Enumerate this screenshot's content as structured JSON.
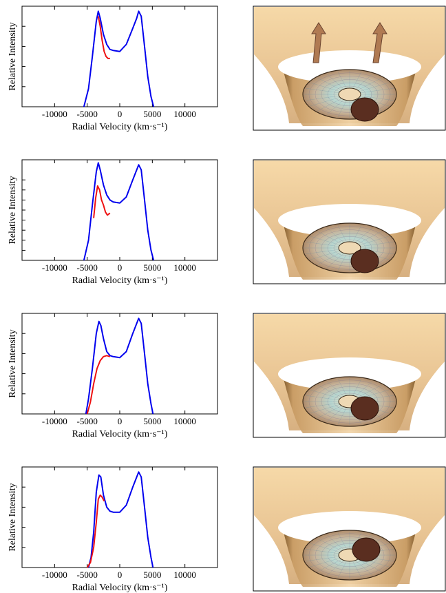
{
  "figure": {
    "colors": {
      "blue": "#0000ee",
      "red": "#ee1111",
      "funnel_light": "#f3d2a0",
      "funnel_dark": "#7a5422",
      "blob": "#5a2e20",
      "arrow": "#b07a52"
    }
  },
  "chart_data": [
    {
      "type": "line",
      "panel": 1,
      "xlabel": "Radial Velocity (km·s⁻¹)",
      "ylabel": "Relative Intensity",
      "xlim": [
        -15000,
        15000
      ],
      "ylim": [
        0,
        1
      ],
      "xticks": [
        -10000,
        -5000,
        0,
        5000,
        10000
      ],
      "xtick_labels": [
        "-10000",
        "-5000",
        "0",
        "5000",
        "10000"
      ],
      "yticks": [
        0.2,
        0.4,
        0.6,
        0.8
      ],
      "grid": false,
      "series": [
        {
          "color": "blue",
          "x": [
            -5500,
            -4800,
            -4200,
            -3600,
            -3300,
            -3000,
            -2500,
            -2000,
            -1500,
            -1000,
            0,
            1000,
            2000,
            2600,
            2900,
            3300,
            3800,
            4300,
            4800,
            5200
          ],
          "y": [
            0.0,
            0.18,
            0.5,
            0.85,
            0.95,
            0.88,
            0.72,
            0.62,
            0.57,
            0.56,
            0.55,
            0.62,
            0.78,
            0.88,
            0.95,
            0.9,
            0.6,
            0.3,
            0.1,
            0.0
          ]
        },
        {
          "color": "red",
          "x": [
            -3300,
            -3000,
            -2700,
            -2400,
            -2100,
            -1800,
            -1500
          ],
          "y": [
            0.9,
            0.8,
            0.66,
            0.55,
            0.5,
            0.48,
            0.48
          ]
        }
      ]
    },
    {
      "type": "line",
      "panel": 2,
      "xlabel": "Radial Velocity (km·s⁻¹)",
      "ylabel": "Relative Intensity",
      "xlim": [
        -15000,
        15000
      ],
      "ylim": [
        0,
        1
      ],
      "xticks": [
        -10000,
        -5000,
        0,
        5000,
        10000
      ],
      "xtick_labels": [
        "-10000",
        "-5000",
        "0",
        "5000",
        "10000"
      ],
      "yticks": [
        0.1,
        0.2,
        0.3,
        0.4,
        0.5,
        0.6,
        0.7,
        0.8
      ],
      "grid": false,
      "series": [
        {
          "color": "blue",
          "x": [
            -5500,
            -4800,
            -4200,
            -3600,
            -3300,
            -3000,
            -2500,
            -2000,
            -1500,
            -1000,
            0,
            1000,
            2000,
            2600,
            2900,
            3300,
            3800,
            4300,
            4800,
            5200
          ],
          "y": [
            0.0,
            0.2,
            0.55,
            0.88,
            0.97,
            0.9,
            0.75,
            0.65,
            0.6,
            0.58,
            0.57,
            0.63,
            0.8,
            0.9,
            0.95,
            0.9,
            0.6,
            0.3,
            0.1,
            0.0
          ]
        },
        {
          "color": "red",
          "x": [
            -4000,
            -3700,
            -3400,
            -3100,
            -2800,
            -2500,
            -2200,
            -1900,
            -1500
          ],
          "y": [
            0.42,
            0.62,
            0.74,
            0.7,
            0.6,
            0.55,
            0.48,
            0.45,
            0.47
          ]
        }
      ]
    },
    {
      "type": "line",
      "panel": 3,
      "xlabel": "Radial Velocity (km·s⁻¹)",
      "ylabel": "Relative Intensity",
      "xlim": [
        -15000,
        15000
      ],
      "ylim": [
        0,
        1
      ],
      "xticks": [
        -10000,
        -5000,
        0,
        5000,
        10000
      ],
      "xtick_labels": [
        "-10000",
        "-5000",
        "0",
        "5000",
        "10000"
      ],
      "yticks": [
        0.2,
        0.4,
        0.6,
        0.8
      ],
      "grid": false,
      "series": [
        {
          "color": "blue",
          "x": [
            -5200,
            -4800,
            -4200,
            -3600,
            -3200,
            -2900,
            -2500,
            -2000,
            -1500,
            -1000,
            0,
            1000,
            2000,
            2600,
            2900,
            3300,
            3800,
            4300,
            4800,
            5100
          ],
          "y": [
            0.0,
            0.15,
            0.45,
            0.8,
            0.92,
            0.88,
            0.75,
            0.62,
            0.58,
            0.57,
            0.56,
            0.62,
            0.8,
            0.9,
            0.95,
            0.9,
            0.6,
            0.3,
            0.1,
            0.0
          ]
        },
        {
          "color": "red",
          "x": [
            -5000,
            -4500,
            -4000,
            -3500,
            -3000,
            -2500,
            -2000,
            -1500
          ],
          "y": [
            0.0,
            0.12,
            0.3,
            0.45,
            0.53,
            0.57,
            0.58,
            0.57
          ]
        }
      ]
    },
    {
      "type": "line",
      "panel": 4,
      "xlabel": "Radial Velocity (km·s⁻¹)",
      "ylabel": "Relative Intensity",
      "xlim": [
        -15000,
        15000
      ],
      "ylim": [
        0,
        1
      ],
      "xticks": [
        -10000,
        -5000,
        0,
        5000,
        10000
      ],
      "xtick_labels": [
        "-10000",
        "-5000",
        "0",
        "5000",
        "10000"
      ],
      "yticks": [
        0.2,
        0.4,
        0.6,
        0.8
      ],
      "grid": false,
      "series": [
        {
          "color": "blue",
          "x": [
            -4800,
            -4400,
            -4000,
            -3600,
            -3200,
            -2900,
            -2500,
            -2000,
            -1500,
            -1000,
            0,
            1000,
            2000,
            2600,
            2900,
            3300,
            3800,
            4300,
            4800,
            5100
          ],
          "y": [
            0.0,
            0.1,
            0.35,
            0.75,
            0.92,
            0.9,
            0.72,
            0.6,
            0.56,
            0.55,
            0.55,
            0.62,
            0.8,
            0.9,
            0.95,
            0.9,
            0.6,
            0.3,
            0.1,
            0.0
          ]
        },
        {
          "color": "red",
          "x": [
            -5000,
            -4500,
            -4000,
            -3600,
            -3300,
            -3000,
            -2700,
            -2400
          ],
          "y": [
            0.0,
            0.05,
            0.2,
            0.45,
            0.68,
            0.72,
            0.7,
            0.66
          ]
        }
      ]
    }
  ]
}
